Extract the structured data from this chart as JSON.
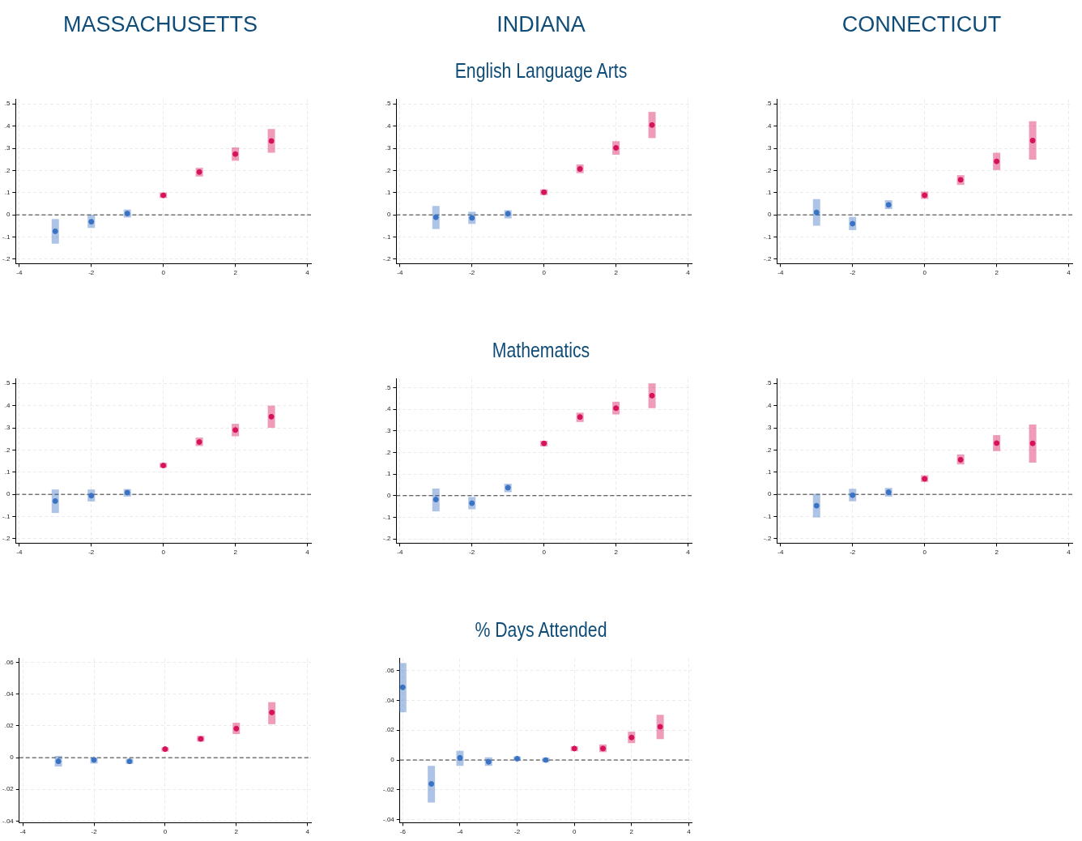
{
  "chart_data": [
    {
      "type": "scatter",
      "title": "MASSACHUSETTS",
      "marker": "circle",
      "grid": true,
      "xlim": [
        -4.1,
        4.1
      ],
      "xticks": [
        -4,
        -2,
        0,
        2,
        4
      ],
      "ylim": [
        -0.22,
        0.52
      ],
      "yticks": [
        {
          "value": -0.2,
          "label": "-.2"
        },
        {
          "value": -0.1,
          "label": "-.1"
        },
        {
          "value": 0,
          "label": "0"
        },
        {
          "value": 0.1,
          "label": ".1"
        },
        {
          "value": 0.2,
          "label": ".2"
        },
        {
          "value": 0.3,
          "label": ".3"
        },
        {
          "value": 0.4,
          "label": ".4"
        },
        {
          "value": 0.5,
          "label": ".5"
        }
      ],
      "ref_lines": [
        {
          "axis": "y",
          "value": 0,
          "color": "#333333",
          "line_style": "dashed"
        }
      ],
      "series": [
        {
          "color": "#3b73c4",
          "x": [
            -3,
            -2,
            -1
          ],
          "values": [
            -0.074,
            -0.031,
            0.006
          ],
          "errors": [
            [
              -0.13,
              -0.019
            ],
            [
              -0.059,
              0.0
            ],
            [
              -0.012,
              0.024
            ]
          ]
        },
        {
          "color": "#d6125a",
          "x": [
            0,
            1,
            2,
            3
          ],
          "values": [
            0.088,
            0.193,
            0.274,
            0.333
          ],
          "errors": [
            [
              0.076,
              0.1
            ],
            [
              0.173,
              0.212
            ],
            [
              0.244,
              0.304
            ],
            [
              0.28,
              0.387
            ]
          ]
        }
      ]
    },
    {
      "type": "scatter",
      "title": "INDIANA",
      "subtitle": "English Language Arts",
      "marker": "circle",
      "grid": true,
      "xlim": [
        -4.1,
        4.1
      ],
      "xticks": [
        -4,
        -2,
        0,
        2,
        4
      ],
      "ylim": [
        -0.22,
        0.52
      ],
      "yticks": [
        {
          "value": -0.2,
          "label": "-.2"
        },
        {
          "value": -0.1,
          "label": "-.1"
        },
        {
          "value": 0,
          "label": "0"
        },
        {
          "value": 0.1,
          "label": ".1"
        },
        {
          "value": 0.2,
          "label": ".2"
        },
        {
          "value": 0.3,
          "label": ".3"
        },
        {
          "value": 0.4,
          "label": ".4"
        },
        {
          "value": 0.5,
          "label": ".5"
        }
      ],
      "ref_lines": [
        {
          "axis": "y",
          "value": 0,
          "color": "#333333",
          "line_style": "dashed"
        }
      ],
      "series": [
        {
          "color": "#3b73c4",
          "x": [
            -3,
            -2,
            -1
          ],
          "values": [
            -0.011,
            -0.014,
            0.005
          ],
          "errors": [
            [
              -0.064,
              0.04
            ],
            [
              -0.041,
              0.014
            ],
            [
              -0.016,
              0.021
            ]
          ]
        },
        {
          "color": "#d6125a",
          "x": [
            0,
            1,
            2,
            3
          ],
          "values": [
            0.102,
            0.207,
            0.302,
            0.405
          ],
          "errors": [
            [
              0.089,
              0.115
            ],
            [
              0.188,
              0.227
            ],
            [
              0.271,
              0.332
            ],
            [
              0.346,
              0.464
            ]
          ]
        }
      ]
    },
    {
      "type": "scatter",
      "title": "CONNECTICUT",
      "marker": "circle",
      "grid": true,
      "xlim": [
        -4.1,
        4.1
      ],
      "xticks": [
        -4,
        -2,
        0,
        2,
        4
      ],
      "ylim": [
        -0.22,
        0.52
      ],
      "yticks": [
        {
          "value": -0.2,
          "label": "-.2"
        },
        {
          "value": -0.1,
          "label": "-.1"
        },
        {
          "value": 0,
          "label": "0"
        },
        {
          "value": 0.1,
          "label": ".1"
        },
        {
          "value": 0.2,
          "label": ".2"
        },
        {
          "value": 0.3,
          "label": ".3"
        },
        {
          "value": 0.4,
          "label": ".4"
        },
        {
          "value": 0.5,
          "label": ".5"
        }
      ],
      "ref_lines": [
        {
          "axis": "y",
          "value": 0,
          "color": "#333333",
          "line_style": "dashed"
        }
      ],
      "series": [
        {
          "color": "#3b73c4",
          "x": [
            -3,
            -2,
            -1
          ],
          "values": [
            0.011,
            -0.04,
            0.045
          ],
          "errors": [
            [
              -0.049,
              0.071
            ],
            [
              -0.069,
              -0.009
            ],
            [
              0.026,
              0.066
            ]
          ]
        },
        {
          "color": "#d6125a",
          "x": [
            0,
            1,
            2,
            3
          ],
          "values": [
            0.088,
            0.158,
            0.241,
            0.335
          ],
          "errors": [
            [
              0.072,
              0.105
            ],
            [
              0.135,
              0.179
            ],
            [
              0.202,
              0.28
            ],
            [
              0.249,
              0.422
            ]
          ]
        }
      ]
    },
    {
      "type": "scatter",
      "marker": "circle",
      "grid": true,
      "xlim": [
        -4.1,
        4.1
      ],
      "xticks": [
        -4,
        -2,
        0,
        2,
        4
      ],
      "ylim": [
        -0.22,
        0.52
      ],
      "yticks": [
        {
          "value": -0.2,
          "label": "-.2"
        },
        {
          "value": -0.1,
          "label": "-.1"
        },
        {
          "value": 0,
          "label": "0"
        },
        {
          "value": 0.1,
          "label": ".1"
        },
        {
          "value": 0.2,
          "label": ".2"
        },
        {
          "value": 0.3,
          "label": ".3"
        },
        {
          "value": 0.4,
          "label": ".4"
        },
        {
          "value": 0.5,
          "label": ".5"
        }
      ],
      "ref_lines": [
        {
          "axis": "y",
          "value": 0,
          "color": "#333333",
          "line_style": "dashed"
        }
      ],
      "series": [
        {
          "color": "#3b73c4",
          "x": [
            -3,
            -2,
            -1
          ],
          "values": [
            -0.03,
            -0.006,
            0.008
          ],
          "errors": [
            [
              -0.084,
              0.022
            ],
            [
              -0.032,
              0.022
            ],
            [
              -0.01,
              0.024
            ]
          ]
        },
        {
          "color": "#d6125a",
          "x": [
            0,
            1,
            2,
            3
          ],
          "values": [
            0.13,
            0.236,
            0.29,
            0.35
          ],
          "errors": [
            [
              0.12,
              0.142
            ],
            [
              0.218,
              0.256
            ],
            [
              0.262,
              0.318
            ],
            [
              0.3,
              0.4
            ]
          ]
        }
      ]
    },
    {
      "type": "scatter",
      "subtitle": "Mathematics",
      "marker": "circle",
      "grid": true,
      "xlim": [
        -4.1,
        4.1
      ],
      "xticks": [
        -4,
        -2,
        0,
        2,
        4
      ],
      "ylim": [
        -0.22,
        0.54
      ],
      "yticks": [
        {
          "value": -0.2,
          "label": "-.2"
        },
        {
          "value": -0.1,
          "label": "-.1"
        },
        {
          "value": 0,
          "label": "0"
        },
        {
          "value": 0.1,
          "label": ".1"
        },
        {
          "value": 0.2,
          "label": ".2"
        },
        {
          "value": 0.3,
          "label": ".3"
        },
        {
          "value": 0.4,
          "label": ".4"
        },
        {
          "value": 0.5,
          "label": ".5"
        }
      ],
      "ref_lines": [
        {
          "axis": "y",
          "value": 0,
          "color": "#333333",
          "line_style": "dashed"
        }
      ],
      "series": [
        {
          "color": "#3b73c4",
          "x": [
            -3,
            -2,
            -1
          ],
          "values": [
            -0.018,
            -0.035,
            0.037
          ],
          "errors": [
            [
              -0.073,
              0.033
            ],
            [
              -0.063,
              -0.006
            ],
            [
              0.016,
              0.055
            ]
          ]
        },
        {
          "color": "#d6125a",
          "x": [
            0,
            1,
            2,
            3
          ],
          "values": [
            0.242,
            0.364,
            0.405,
            0.463
          ],
          "errors": [
            [
              0.228,
              0.254
            ],
            [
              0.341,
              0.384
            ],
            [
              0.376,
              0.435
            ],
            [
              0.405,
              0.52
            ]
          ]
        }
      ]
    },
    {
      "type": "scatter",
      "marker": "circle",
      "grid": true,
      "xlim": [
        -4.1,
        4.1
      ],
      "xticks": [
        -4,
        -2,
        0,
        2,
        4
      ],
      "ylim": [
        -0.22,
        0.52
      ],
      "yticks": [
        {
          "value": -0.2,
          "label": "-.2"
        },
        {
          "value": -0.1,
          "label": "-.1"
        },
        {
          "value": 0,
          "label": "0"
        },
        {
          "value": 0.1,
          "label": ".1"
        },
        {
          "value": 0.2,
          "label": ".2"
        },
        {
          "value": 0.3,
          "label": ".3"
        },
        {
          "value": 0.4,
          "label": ".4"
        },
        {
          "value": 0.5,
          "label": ".5"
        }
      ],
      "ref_lines": [
        {
          "axis": "y",
          "value": 0,
          "color": "#333333",
          "line_style": "dashed"
        }
      ],
      "series": [
        {
          "color": "#3b73c4",
          "x": [
            -3,
            -2,
            -1
          ],
          "values": [
            -0.051,
            -0.004,
            0.01
          ],
          "errors": [
            [
              -0.104,
              0.002
            ],
            [
              -0.031,
              0.025
            ],
            [
              -0.01,
              0.029
            ]
          ]
        },
        {
          "color": "#d6125a",
          "x": [
            0,
            1,
            2,
            3
          ],
          "values": [
            0.07,
            0.156,
            0.231,
            0.23
          ],
          "errors": [
            [
              0.056,
              0.086
            ],
            [
              0.135,
              0.18
            ],
            [
              0.195,
              0.267
            ],
            [
              0.143,
              0.315
            ]
          ]
        }
      ]
    },
    {
      "type": "scatter",
      "marker": "circle",
      "grid": true,
      "xlim": [
        -4.1,
        4.1
      ],
      "xticks": [
        -4,
        -2,
        0,
        2,
        4
      ],
      "ylim": [
        -0.041,
        0.0625
      ],
      "yticks": [
        {
          "value": -0.04,
          "label": "-.04"
        },
        {
          "value": -0.02,
          "label": "-.02"
        },
        {
          "value": 0,
          "label": "0"
        },
        {
          "value": 0.02,
          "label": ".02"
        },
        {
          "value": 0.04,
          "label": ".04"
        },
        {
          "value": 0.06,
          "label": ".06"
        }
      ],
      "ref_lines": [
        {
          "axis": "y",
          "value": 0,
          "color": "#333333",
          "line_style": "dashed"
        }
      ],
      "series": [
        {
          "color": "#3b73c4",
          "x": [
            -3,
            -2,
            -1
          ],
          "values": [
            -0.0023,
            -0.0014,
            -0.0023
          ],
          "errors": [
            [
              -0.0056,
              0.0011
            ],
            [
              -0.0037,
              0.0
            ],
            [
              -0.0039,
              -0.0008
            ]
          ]
        },
        {
          "color": "#d6125a",
          "x": [
            0,
            1,
            2,
            3
          ],
          "values": [
            0.0054,
            0.0118,
            0.0183,
            0.0285
          ],
          "errors": [
            [
              0.0039,
              0.0065
            ],
            [
              0.0101,
              0.0138
            ],
            [
              0.0149,
              0.022
            ],
            [
              0.0211,
              0.035
            ]
          ]
        }
      ]
    },
    {
      "type": "scatter",
      "subtitle": "% Days Attended",
      "marker": "circle",
      "grid": true,
      "xlim": [
        -6.1,
        4.1
      ],
      "xticks": [
        -6,
        -4,
        -2,
        0,
        2,
        4
      ],
      "ylim": [
        -0.042,
        0.068
      ],
      "yticks": [
        {
          "value": -0.04,
          "label": "-.04"
        },
        {
          "value": -0.02,
          "label": "-.02"
        },
        {
          "value": 0,
          "label": "0"
        },
        {
          "value": 0.02,
          "label": ".02"
        },
        {
          "value": 0.04,
          "label": ".04"
        },
        {
          "value": 0.06,
          "label": ".06"
        }
      ],
      "ref_lines": [
        {
          "axis": "y",
          "value": 0,
          "color": "#333333",
          "line_style": "dashed"
        }
      ],
      "series": [
        {
          "color": "#3b73c4",
          "x": [
            -6,
            -5,
            -4,
            -3,
            -2,
            -1
          ],
          "values": [
            0.0487,
            -0.016,
            0.0015,
            -0.0012,
            0.0009,
            0.0
          ],
          "errors": [
            [
              0.032,
              0.065
            ],
            [
              -0.0285,
              -0.0039
            ],
            [
              -0.0039,
              0.0062
            ],
            [
              -0.0039,
              0.0018
            ],
            [
              -0.0006,
              0.0024
            ],
            [
              -0.0015,
              0.0015
            ]
          ]
        },
        {
          "color": "#d6125a",
          "x": [
            0,
            1,
            2,
            3
          ],
          "values": [
            0.0077,
            0.0077,
            0.0151,
            0.0223
          ],
          "errors": [
            [
              0.0059,
              0.0092
            ],
            [
              0.0053,
              0.0104
            ],
            [
              0.0113,
              0.019
            ],
            [
              0.014,
              0.0303
            ]
          ]
        }
      ]
    }
  ]
}
